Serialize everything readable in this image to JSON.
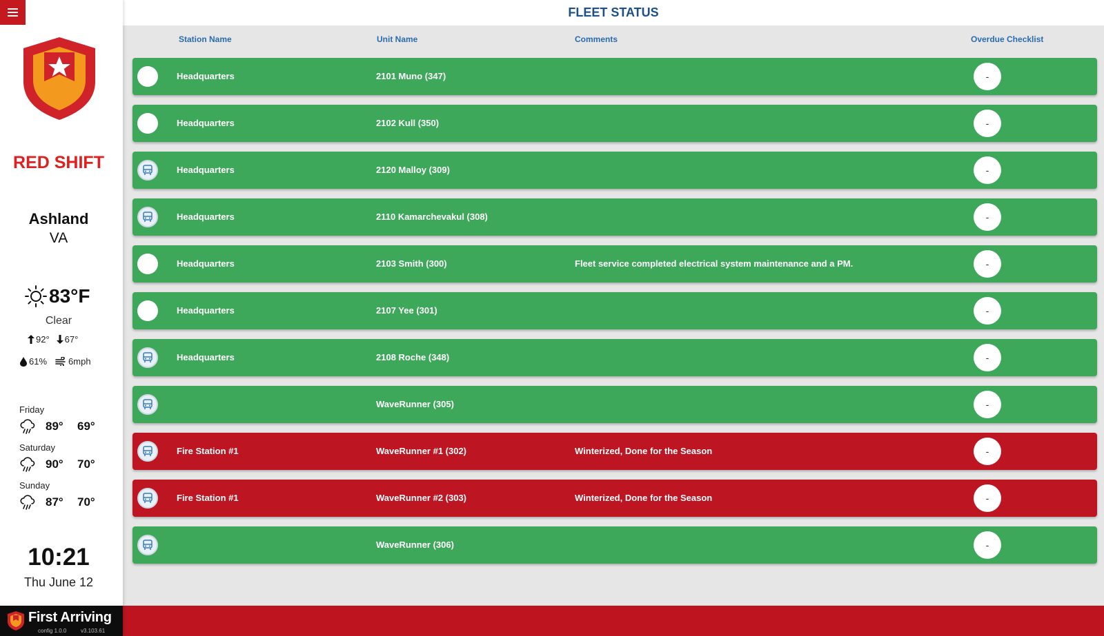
{
  "sidebar": {
    "shift_name": "RED SHIFT",
    "location": {
      "city": "Ashland",
      "state": "VA"
    },
    "weather": {
      "temp": "83°F",
      "condition": "Clear",
      "high": "92°",
      "low": "67°",
      "humidity": "61%",
      "wind": "6mph"
    },
    "forecast": [
      {
        "day": "Friday",
        "high": "89°",
        "low": "69°",
        "icon": "rain-cloud-icon"
      },
      {
        "day": "Saturday",
        "high": "90°",
        "low": "70°",
        "icon": "rain-cloud-icon"
      },
      {
        "day": "Sunday",
        "high": "87°",
        "low": "70°",
        "icon": "rain-cloud-icon"
      }
    ],
    "clock": {
      "time": "10:21",
      "date": "Thu June 12"
    },
    "brand": {
      "name": "First Arriving",
      "config": "config 1.0.0",
      "version": "v3.103.61"
    }
  },
  "header": {
    "title": "FLEET STATUS",
    "columns": {
      "station": "Station Name",
      "unit": "Unit Name",
      "comments": "Comments",
      "checklist": "Overdue Checklist"
    }
  },
  "rows": [
    {
      "status": "green",
      "icon": "blank",
      "station": "Headquarters",
      "unit": "2101 Muno (347)",
      "comment": "",
      "checklist": "-"
    },
    {
      "status": "green",
      "icon": "blank",
      "station": "Headquarters",
      "unit": "2102 Kull (350)",
      "comment": "",
      "checklist": "-"
    },
    {
      "status": "green",
      "icon": "vehicle",
      "station": "Headquarters",
      "unit": "2120 Malloy (309)",
      "comment": "",
      "checklist": "-"
    },
    {
      "status": "green",
      "icon": "vehicle",
      "station": "Headquarters",
      "unit": "2110 Kamarchevakul (308)",
      "comment": "",
      "checklist": "-"
    },
    {
      "status": "green",
      "icon": "blank",
      "station": "Headquarters",
      "unit": "2103 Smith (300)",
      "comment": "Fleet service completed electrical system maintenance and a PM.",
      "checklist": "-"
    },
    {
      "status": "green",
      "icon": "blank",
      "station": "Headquarters",
      "unit": "2107 Yee (301)",
      "comment": "",
      "checklist": "-"
    },
    {
      "status": "green",
      "icon": "vehicle",
      "station": "Headquarters",
      "unit": "2108 Roche (348)",
      "comment": "",
      "checklist": "-"
    },
    {
      "status": "green",
      "icon": "vehicle",
      "station": "",
      "unit": "WaveRunner (305)",
      "comment": "",
      "checklist": "-"
    },
    {
      "status": "red",
      "icon": "vehicle",
      "station": "Fire Station #1",
      "unit": "WaveRunner #1 (302)",
      "comment": "Winterized, Done for the Season",
      "checklist": "-"
    },
    {
      "status": "red",
      "icon": "vehicle",
      "station": "Fire Station #1",
      "unit": "WaveRunner #2 (303)",
      "comment": "Winterized, Done for the Season",
      "checklist": "-"
    },
    {
      "status": "green",
      "icon": "vehicle",
      "station": "",
      "unit": "WaveRunner (306)",
      "comment": "",
      "checklist": "-"
    }
  ],
  "colors": {
    "in_service": "#3da75a",
    "out_of_service": "#be1522",
    "accent_red": "#e0201f",
    "header_blue": "#1d4f8a"
  }
}
